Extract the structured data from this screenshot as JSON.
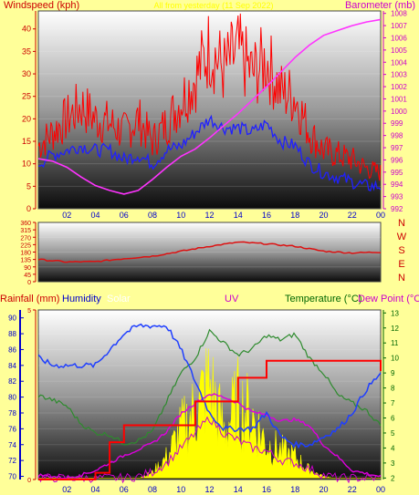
{
  "colors": {
    "background": "#ffff99",
    "wind": "#ff0000",
    "wind_avg": "#2020ff",
    "barometer": "#ff33ff",
    "direction": "#dd1111",
    "rainfall": "#ff0000",
    "humidity": "#1f3fff",
    "solar": "#ffff00",
    "uv": "#cc00cc",
    "temperature": "#2e8b2e",
    "dew_point": "#dd00dd",
    "label_red": "#cc0000",
    "label_blue": "#0000cc",
    "label_green": "#006600"
  },
  "chart_data": [
    {
      "type": "line",
      "panel": "wind-barometer",
      "title": "All from yesterday (11 Sep 2022)",
      "left_axis_label": "Windspeed (kph)",
      "right_axis_label": "Barometer (mb)",
      "x_ticks": [
        "02",
        "04",
        "06",
        "08",
        "10",
        "12",
        "14",
        "16",
        "18",
        "20",
        "22",
        "00"
      ],
      "y_left_ticks": [
        0,
        5,
        10,
        15,
        20,
        25,
        30,
        35,
        40
      ],
      "y_right_ticks": [
        992,
        993,
        994,
        995,
        996,
        997,
        998,
        999,
        1000,
        1001,
        1002,
        1003,
        1004,
        1005,
        1006,
        1007,
        1008
      ],
      "ylim_left": [
        0,
        44
      ],
      "ylim_right": [
        992,
        1008.2
      ],
      "hours": [
        0,
        1,
        2,
        3,
        4,
        5,
        6,
        7,
        8,
        9,
        10,
        11,
        12,
        13,
        14,
        15,
        16,
        17,
        18,
        19,
        20,
        21,
        22,
        23,
        24
      ],
      "series": [
        {
          "name": "gust",
          "color_key": "wind",
          "axis": "left",
          "values": [
            14,
            17,
            20,
            23,
            20,
            19,
            17,
            20,
            15,
            19,
            24,
            29,
            36,
            31,
            35,
            30,
            33,
            26,
            25,
            17,
            13,
            12,
            11,
            9,
            8
          ]
        },
        {
          "name": "average",
          "color_key": "wind_avg",
          "axis": "left",
          "values": [
            10,
            12,
            13,
            14,
            13,
            13,
            11,
            12,
            10,
            13,
            14,
            17,
            20,
            18,
            18,
            17,
            19,
            15,
            14,
            10,
            8,
            7,
            6,
            5,
            5
          ]
        },
        {
          "name": "barometer",
          "color_key": "barometer",
          "axis": "right",
          "values": [
            996.1,
            995.9,
            995.4,
            994.6,
            993.9,
            993.5,
            993.2,
            993.5,
            994.4,
            995.4,
            996.3,
            996.9,
            997.8,
            998.8,
            999.8,
            1000.9,
            1002.0,
            1003.2,
            1004.4,
            1005.4,
            1006.2,
            1006.6,
            1007.0,
            1007.3,
            1007.5
          ]
        }
      ]
    },
    {
      "type": "line",
      "panel": "wind-direction",
      "y_ticks": [
        0,
        45,
        90,
        135,
        180,
        225,
        270,
        315,
        360
      ],
      "ylim": [
        0,
        360
      ],
      "compass_labels": [
        "N",
        "W",
        "S",
        "E",
        "N"
      ],
      "hours": [
        0,
        2,
        4,
        6,
        8,
        10,
        12,
        14,
        16,
        18,
        20,
        22,
        24
      ],
      "series": [
        {
          "name": "direction",
          "color_key": "direction",
          "values": [
            135,
            120,
            122,
            140,
            155,
            185,
            215,
            240,
            230,
            215,
            185,
            175,
            180
          ]
        }
      ]
    },
    {
      "type": "line",
      "panel": "rain-humidity-temp",
      "labels": {
        "rainfall": "Rainfall (mm)",
        "humidity": "Humidity",
        "solar": "Solar",
        "uv": "UV",
        "temperature": "Temperature (°C)",
        "dew_point": "Dew Point (°C)"
      },
      "rain_ticks": [
        0,
        5
      ],
      "rain_ylim": [
        0,
        5
      ],
      "humidity_ticks": [
        70,
        72,
        74,
        76,
        78,
        80,
        82,
        84,
        86,
        88,
        90
      ],
      "humidity_ylim": [
        69.6,
        91
      ],
      "temp_ticks": [
        2,
        3,
        4,
        5,
        6,
        7,
        8,
        9,
        10,
        11,
        12,
        13
      ],
      "temp_ylim": [
        1.9,
        13.2
      ],
      "hours": [
        0,
        1,
        2,
        3,
        4,
        5,
        6,
        7,
        8,
        9,
        10,
        11,
        12,
        13,
        14,
        15,
        16,
        17,
        18,
        19,
        20,
        21,
        22,
        23,
        24
      ],
      "series": [
        {
          "name": "humidity",
          "color_key": "humidity",
          "axis": "humidity",
          "values": [
            85,
            84,
            84,
            84,
            84,
            86,
            88,
            89,
            89,
            89,
            86,
            82,
            78,
            76,
            76,
            76,
            78,
            75,
            74,
            74,
            75,
            76,
            78,
            81,
            83
          ]
        },
        {
          "name": "temperature",
          "color_key": "temperature",
          "axis": "temp",
          "values": [
            7.5,
            7.2,
            6.8,
            5.6,
            5.0,
            4.9,
            4.3,
            4.5,
            5.1,
            7.1,
            9.0,
            10.0,
            11.8,
            11.0,
            10.2,
            10.6,
            11.5,
            11.2,
            11.6,
            10.0,
            9.0,
            7.5,
            7.0,
            6.5,
            5.5
          ]
        },
        {
          "name": "dew point",
          "color_key": "dew_point",
          "axis": "temp",
          "values": [
            2.2,
            2.1,
            2.0,
            2.2,
            2.5,
            3.0,
            3.5,
            3.9,
            4.3,
            5.1,
            6.3,
            7.0,
            7.6,
            7.4,
            7.0,
            6.4,
            6.2,
            5.8,
            5.9,
            5.5,
            4.2,
            3.4,
            2.5,
            2.3,
            2.1
          ]
        },
        {
          "name": "rainfall",
          "color_key": "rainfall",
          "axis": "rain",
          "step": true,
          "values": [
            0,
            0,
            0,
            0,
            0.2,
            1.1,
            1.6,
            1.6,
            1.6,
            1.6,
            1.6,
            2.3,
            2.3,
            2.3,
            3.0,
            3.0,
            3.5,
            3.5,
            3.5,
            3.5,
            3.5,
            3.5,
            3.5,
            3.5,
            3.2
          ]
        },
        {
          "name": "UV",
          "color_key": "uv",
          "axis": "temp",
          "values": [
            2,
            2,
            2,
            2,
            2,
            2,
            2,
            2.1,
            2.4,
            3.0,
            4.0,
            5.0,
            6.0,
            5.0,
            4.5,
            4.0,
            3.8,
            3.2,
            3.0,
            2.6,
            2.2,
            2.0,
            2,
            2,
            2
          ]
        },
        {
          "name": "solar",
          "color_key": "solar",
          "axis": "temp",
          "fill": true,
          "values": [
            2,
            2,
            2,
            2,
            2,
            2,
            2,
            2,
            2.4,
            3.5,
            5.5,
            7.0,
            9.0,
            5.5,
            7.5,
            6.5,
            4.5,
            4.0,
            3.5,
            2.6,
            2.1,
            2,
            2,
            2,
            2
          ]
        }
      ]
    }
  ]
}
